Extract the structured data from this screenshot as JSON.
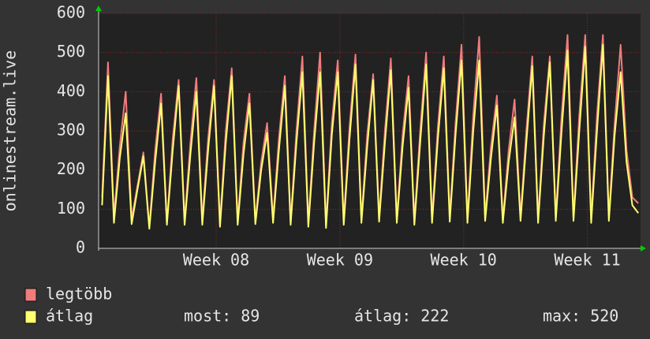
{
  "chart_data": {
    "type": "line",
    "y_label": "onlinestream.live",
    "xlim": [
      7.05,
      11.43
    ],
    "xticks": [
      {
        "value": 8,
        "label": "Week 08"
      },
      {
        "value": 9,
        "label": "Week 09"
      },
      {
        "value": 10,
        "label": "Week 10"
      },
      {
        "value": 11,
        "label": "Week 11"
      }
    ],
    "ylim": [
      0,
      600
    ],
    "yticks": [
      0,
      100,
      200,
      300,
      400,
      500,
      600
    ],
    "grid": true,
    "x": [
      7.078,
      7.126,
      7.174,
      7.221,
      7.269,
      7.317,
      7.364,
      7.412,
      7.46,
      7.507,
      7.555,
      7.602,
      7.649,
      7.697,
      7.745,
      7.792,
      7.84,
      7.888,
      7.935,
      7.983,
      8.031,
      8.078,
      8.126,
      8.174,
      8.221,
      8.269,
      8.317,
      8.364,
      8.412,
      8.46,
      8.507,
      8.555,
      8.602,
      8.649,
      8.697,
      8.745,
      8.792,
      8.84,
      8.888,
      8.935,
      8.983,
      9.031,
      9.078,
      9.126,
      9.174,
      9.221,
      9.269,
      9.317,
      9.364,
      9.412,
      9.46,
      9.507,
      9.555,
      9.602,
      9.649,
      9.697,
      9.745,
      9.792,
      9.84,
      9.888,
      9.935,
      9.983,
      10.031,
      10.078,
      10.126,
      10.174,
      10.221,
      10.269,
      10.317,
      10.364,
      10.412,
      10.46,
      10.507,
      10.555,
      10.602,
      10.649,
      10.697,
      10.745,
      10.792,
      10.84,
      10.888,
      10.935,
      10.983,
      11.031,
      11.078,
      11.126,
      11.174,
      11.221,
      11.269,
      11.317,
      11.364,
      11.412
    ],
    "series": [
      {
        "name": "legtöbb",
        "color": "#f07c7c",
        "values": [
          130,
          475,
          80,
          260,
          400,
          75,
          160,
          245,
          55,
          250,
          395,
          65,
          280,
          430,
          70,
          270,
          435,
          70,
          280,
          430,
          65,
          300,
          460,
          70,
          270,
          395,
          70,
          220,
          320,
          75,
          280,
          440,
          70,
          300,
          490,
          65,
          300,
          500,
          60,
          320,
          480,
          70,
          310,
          495,
          75,
          290,
          445,
          80,
          300,
          485,
          75,
          290,
          440,
          70,
          300,
          500,
          75,
          310,
          490,
          80,
          320,
          520,
          75,
          340,
          540,
          80,
          260,
          390,
          75,
          250,
          380,
          80,
          300,
          490,
          75,
          320,
          490,
          80,
          340,
          545,
          80,
          340,
          545,
          75,
          340,
          545,
          80,
          320,
          520,
          250,
          130,
          115
        ]
      },
      {
        "name": "átlag",
        "color": "#ffff70",
        "values": [
          110,
          440,
          65,
          230,
          345,
          62,
          150,
          235,
          50,
          220,
          370,
          60,
          250,
          415,
          60,
          240,
          400,
          60,
          250,
          415,
          55,
          270,
          440,
          60,
          240,
          370,
          62,
          200,
          295,
          65,
          250,
          415,
          60,
          270,
          450,
          55,
          270,
          450,
          52,
          290,
          450,
          60,
          280,
          470,
          65,
          260,
          430,
          68,
          270,
          455,
          65,
          260,
          410,
          60,
          270,
          470,
          65,
          280,
          460,
          68,
          290,
          480,
          65,
          300,
          480,
          70,
          230,
          365,
          65,
          220,
          335,
          70,
          270,
          465,
          65,
          290,
          475,
          70,
          300,
          505,
          70,
          300,
          515,
          65,
          300,
          520,
          70,
          290,
          450,
          220,
          110,
          90
        ]
      }
    ],
    "stats": [
      "most: 89",
      "átlag: 222",
      "max: 520"
    ]
  }
}
